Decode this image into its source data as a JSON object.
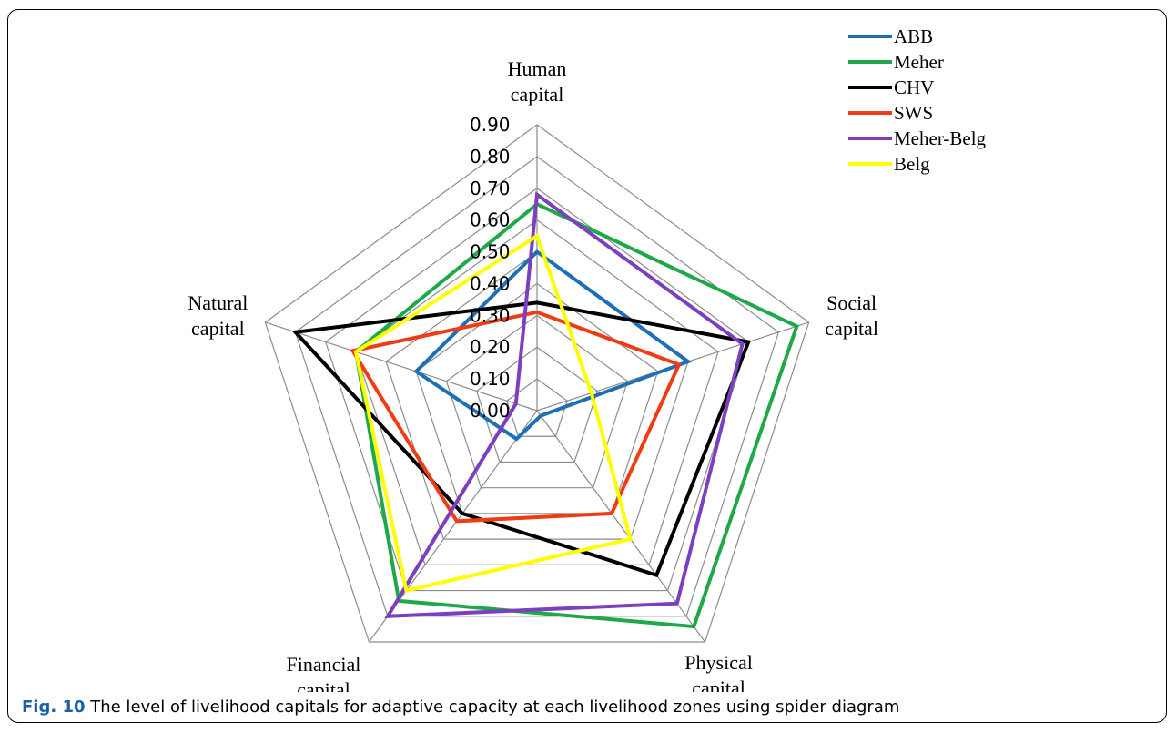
{
  "chart_data": {
    "type": "radar",
    "axes": [
      {
        "label": [
          "Human",
          "capital"
        ]
      },
      {
        "label": [
          "Social",
          "capital"
        ]
      },
      {
        "label": [
          "Physical",
          "capital"
        ]
      },
      {
        "label": [
          "Financial",
          "capital"
        ]
      },
      {
        "label": [
          "Natural",
          "capital"
        ]
      }
    ],
    "rlim": [
      0,
      0.9
    ],
    "ticks": [
      "0.00",
      "0.10",
      "0.20",
      "0.30",
      "0.40",
      "0.50",
      "0.60",
      "0.70",
      "0.80",
      "0.90"
    ],
    "tick_values": [
      0,
      0.1,
      0.2,
      0.3,
      0.4,
      0.5,
      0.6,
      0.7,
      0.8,
      0.9
    ],
    "grid": true,
    "legend_position": "top-right",
    "series": [
      {
        "name": "ABB",
        "color": "#1f6fb4",
        "values": [
          0.5,
          0.5,
          0.02,
          0.11,
          0.4
        ]
      },
      {
        "name": "Meher",
        "color": "#1fa84a",
        "values": [
          0.65,
          0.86,
          0.84,
          0.74,
          0.6
        ]
      },
      {
        "name": "CHV",
        "color": "#000000",
        "values": [
          0.34,
          0.7,
          0.64,
          0.4,
          0.8
        ]
      },
      {
        "name": "SWS",
        "color": "#f03c14",
        "values": [
          0.31,
          0.47,
          0.4,
          0.43,
          0.61
        ]
      },
      {
        "name": "Meher-Belg",
        "color": "#7b3fbf",
        "values": [
          0.68,
          0.68,
          0.75,
          0.8,
          0.07
        ]
      },
      {
        "name": "Belg",
        "color": "#ffff00",
        "values": [
          0.55,
          0.18,
          0.5,
          0.7,
          0.6
        ]
      }
    ]
  },
  "caption": {
    "label": "Fig. 10",
    "text": " The level of livelihood capitals for adaptive capacity at each livelihood zones using spider diagram"
  }
}
